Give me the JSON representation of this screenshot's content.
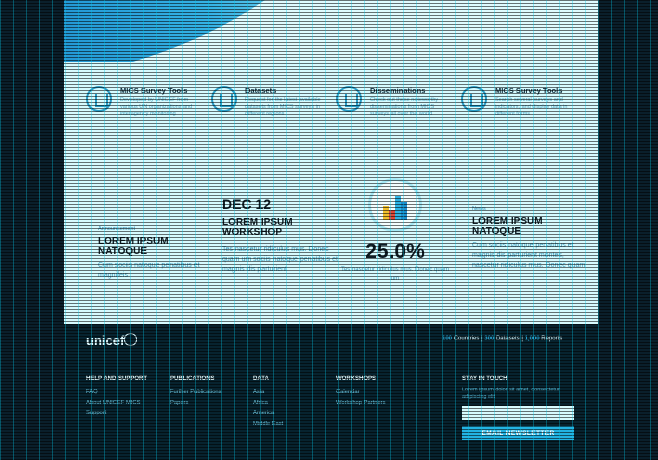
{
  "tools": [
    {
      "title": "MICS Survey Tools",
      "desc": "Developed by UNICEF from various UN organizations and interagency monitoring",
      "icon": "book-icon"
    },
    {
      "title": "Datasets",
      "desc": "Request for the latest available datasets from MICS surveys in different regions",
      "icon": "book-icon"
    },
    {
      "title": "Disseminations",
      "desc": "Check out these noteworthy disseminations from MICS surveys all over the world",
      "icon": "book-icon"
    },
    {
      "title": "MICS Survey Tools",
      "desc": "Search several surveys and indicators, and display data in different forms",
      "icon": "chart-icon"
    }
  ],
  "announcement": {
    "label": "Announcement",
    "title": "LOREM IPSUM NATOQUE",
    "text": "Cum sociis natoque penatibus et magnifeis"
  },
  "event": {
    "date": "DEC 12",
    "title": "LOREM IPSUM WORKSHOP",
    "text": "Tes nascetur ridiculus mus. Donec quam um sociis natoque penatibus et magnis dis parturient"
  },
  "stat": {
    "value": "25.0%",
    "text": "Tes nascetur ridiculus mus. Donec quam um",
    "bar_colors": [
      "#f2c12e",
      "#e04a3a",
      "#2fb5e6",
      "#1d8ecf"
    ]
  },
  "news": {
    "label": "News",
    "title": "LOREM IPSUM NATOQUE",
    "text": "Cum sociis natoque penatibus et magnis dis parturient montes, nascetur ridiculus mus. Donec quam"
  },
  "footer": {
    "logo": "unicef",
    "stats": [
      {
        "num": "100",
        "label": "Countries"
      },
      {
        "num": "300",
        "label": "Datasets"
      },
      {
        "num": "1,000",
        "label": "Reports"
      }
    ],
    "columns": [
      {
        "head": "HELP AND SUPPORT",
        "links": [
          "FAQ",
          "About UNICEF MICS",
          "Support"
        ]
      },
      {
        "head": "PUBLICATIONS",
        "links": [
          "Further Publications",
          "Papers"
        ]
      },
      {
        "head": "DATA",
        "links": [
          "Asia",
          "Africa",
          "America",
          "Middle East"
        ]
      },
      {
        "head": "WORKSHOPS",
        "links": [
          "Calendar",
          "Workshop Partners"
        ]
      }
    ],
    "stay_title": "STAY IN TOUCH",
    "stay_text": "Lorem ipsum dolor sit amet, consectetur adipiscing elit",
    "email_placeholder": "",
    "button": "EMAIL NEWSLETTER"
  }
}
